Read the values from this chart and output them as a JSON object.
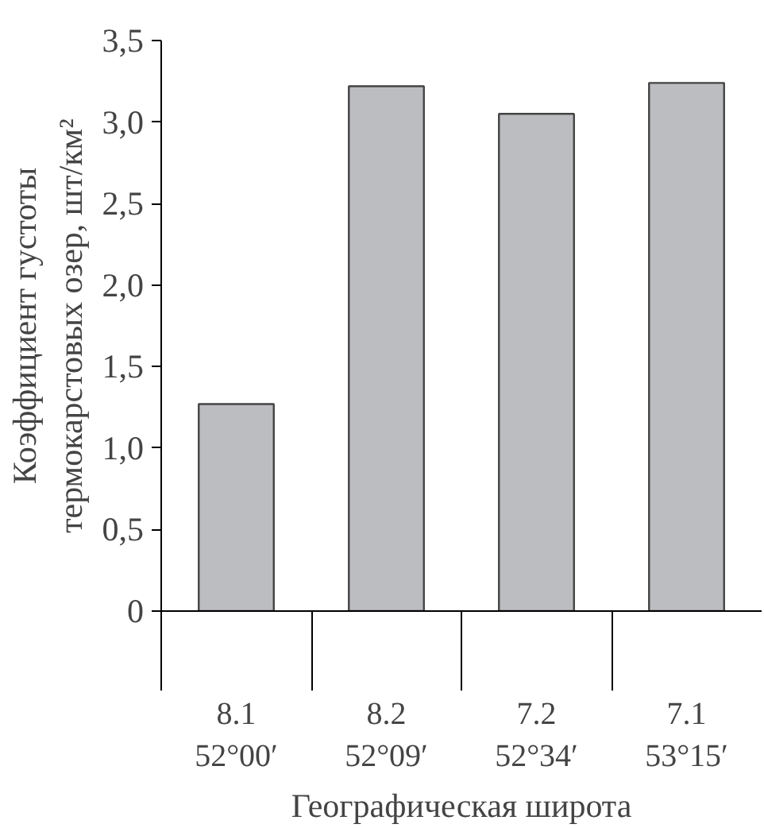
{
  "chart_data": {
    "type": "bar",
    "xlabel": "Географическая широта",
    "ylabel": "Коэффициент густоты\nтермокарстовых озер, шт/км²",
    "categories": [
      "8.1\n52°00′",
      "8.2\n52°09′",
      "7.2\n52°34′",
      "7.1\n53°15′"
    ],
    "values": [
      1.27,
      3.22,
      3.05,
      3.24
    ],
    "color": "#bcbdc1",
    "ylim": [
      0,
      3.5
    ],
    "yticks": [
      0,
      {
        "value": 0.5,
        "label": "0,5"
      },
      {
        "value": 1,
        "label": "1,0"
      },
      {
        "value": 1.5,
        "label": "1,5"
      },
      {
        "value": 2,
        "label": "2,0"
      },
      {
        "value": 2.5,
        "label": "2,5"
      },
      {
        "value": 3,
        "label": "3,0"
      },
      {
        "value": 3.5,
        "label": "3,5"
      }
    ],
    "grid": false
  }
}
